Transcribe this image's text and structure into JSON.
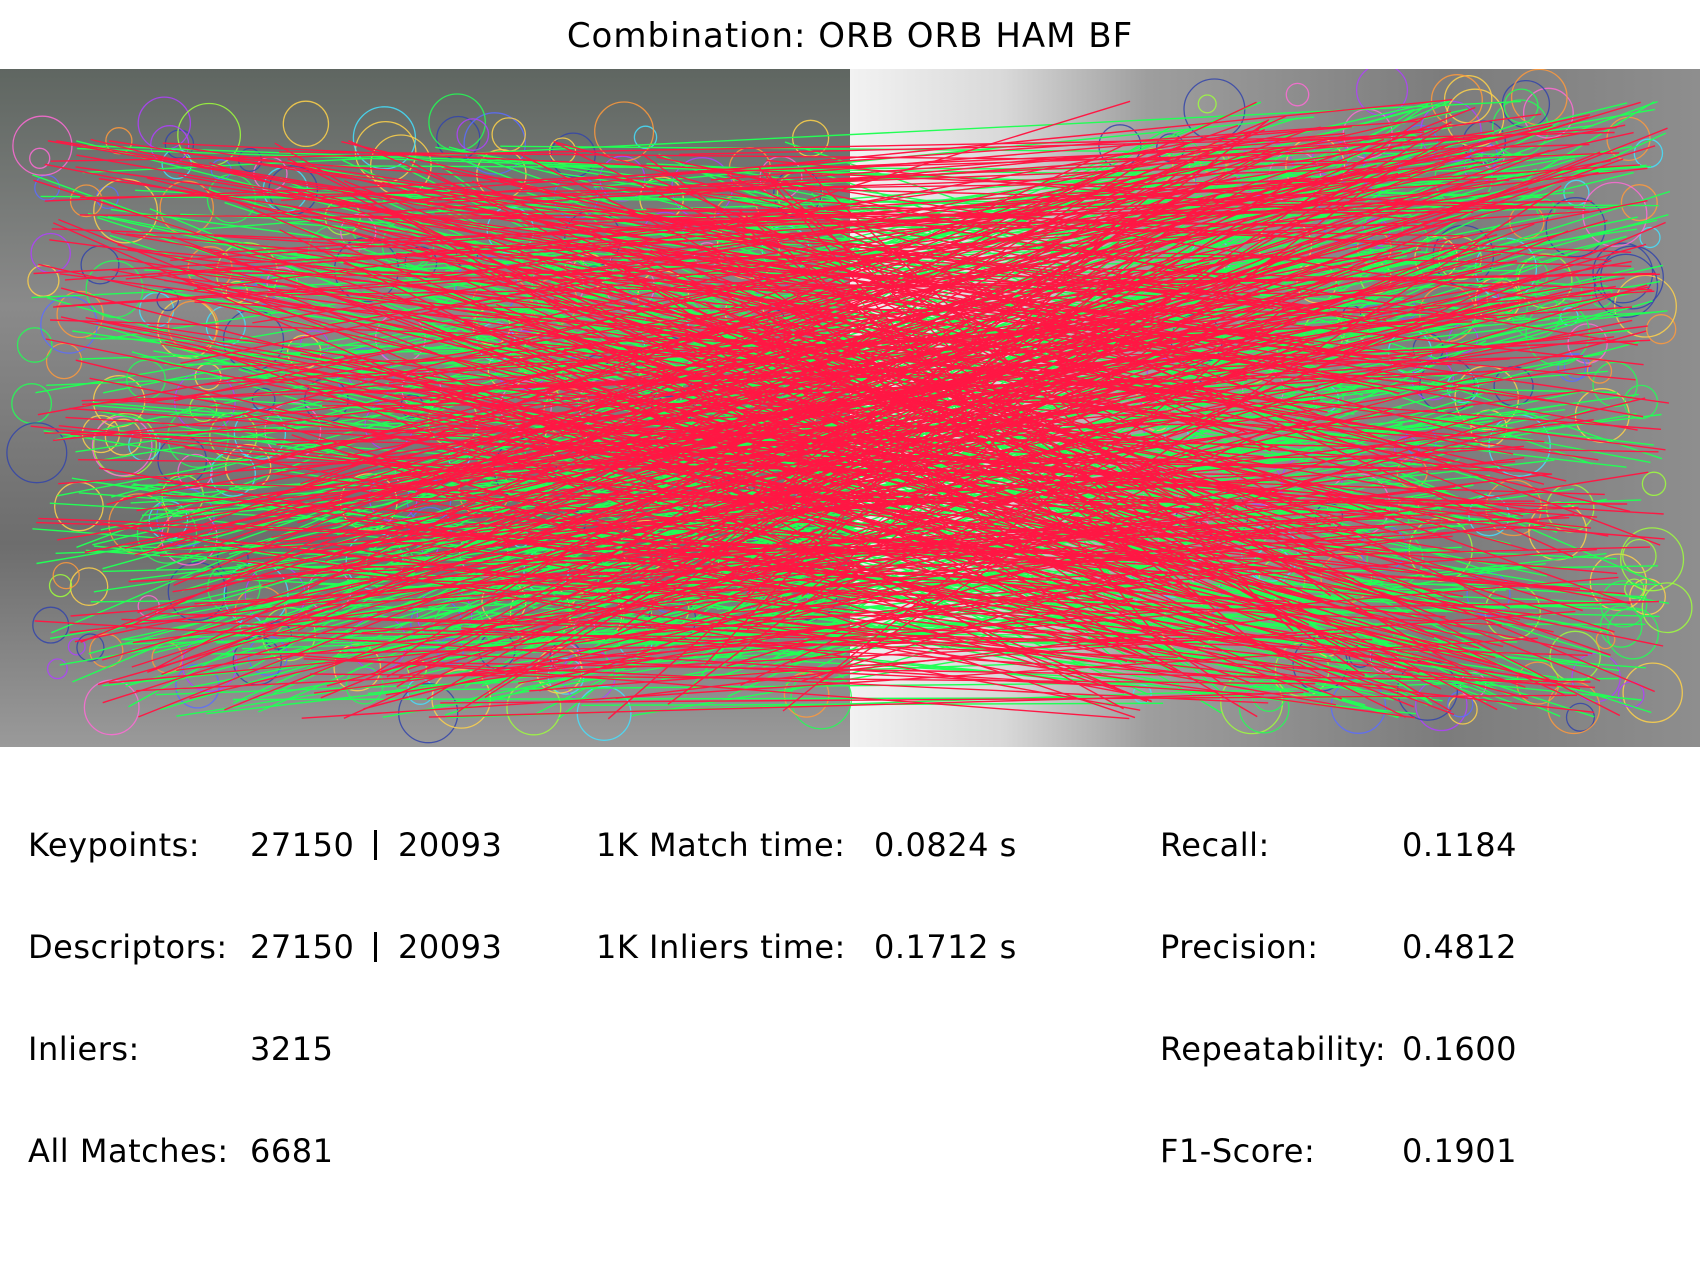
{
  "title": "Combination: ORB ORB HAM BF",
  "left_stats": [
    {
      "label": "Keypoints:",
      "value_a": "27150",
      "value_b": "20093"
    },
    {
      "label": "Descriptors:",
      "value_a": "27150",
      "value_b": "20093"
    },
    {
      "label": "Inliers:",
      "value_a": "3215"
    },
    {
      "label": "All Matches:",
      "value_a": "6681"
    }
  ],
  "timing_stats": [
    {
      "label": "1K Match time:",
      "value": "0.0824 s"
    },
    {
      "label": "1K Inliers time:",
      "value": "0.1712 s"
    }
  ],
  "score_stats": [
    {
      "label": "Recall:",
      "value": "0.1184"
    },
    {
      "label": "Precision:",
      "value": "0.4812"
    },
    {
      "label": "Repeatability:",
      "value": "0.1600"
    },
    {
      "label": "F1-Score:",
      "value": "0.1901"
    }
  ],
  "colors": {
    "inlier_line": "#ff1744",
    "outlier_line": "#22ff55",
    "left_image_bg": "#7a7a7a",
    "right_image_bg": "#bdbdbd"
  }
}
